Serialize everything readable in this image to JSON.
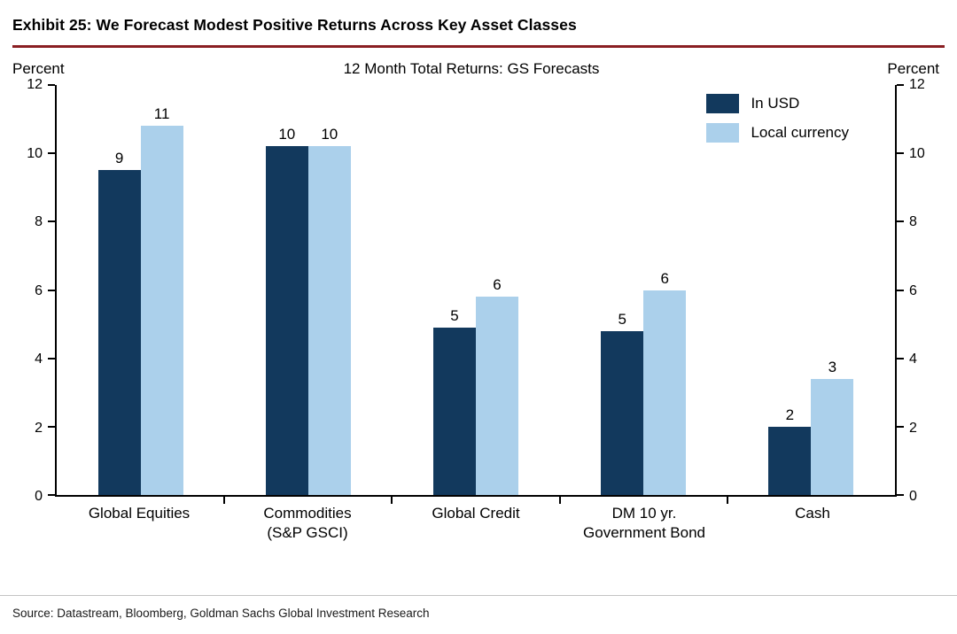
{
  "header": {
    "title": "Exhibit 25: We Forecast Modest Positive Returns Across Key Asset Classes"
  },
  "footer": {
    "source": "Source: Datastream, Bloomberg, Goldman Sachs Global Investment Research"
  },
  "chart_data": {
    "type": "bar",
    "title": "12 Month Total Returns: GS Forecasts",
    "y_axis_label_left": "Percent",
    "y_axis_label_right": "Percent",
    "ylim": [
      0,
      12
    ],
    "yticks": [
      0,
      2,
      4,
      6,
      8,
      10,
      12
    ],
    "grid": false,
    "legend_position": "top-right",
    "categories": [
      "Global Equities",
      "Commodities\n(S&P GSCI)",
      "Global Credit",
      "DM 10 yr.\nGovernment Bond",
      "Cash"
    ],
    "series": [
      {
        "name": "In USD",
        "color": "#12395d",
        "data_labels": [
          9,
          10,
          5,
          5,
          2
        ],
        "values": [
          9.5,
          10.2,
          4.9,
          4.8,
          2.0
        ]
      },
      {
        "name": "Local currency",
        "color": "#abd0eb",
        "data_labels": [
          11,
          10,
          6,
          6,
          3
        ],
        "values": [
          10.8,
          10.2,
          5.8,
          6.0,
          3.4
        ]
      }
    ],
    "colors": {
      "title_rule": "#8a1e22",
      "axis": "#000000"
    }
  }
}
